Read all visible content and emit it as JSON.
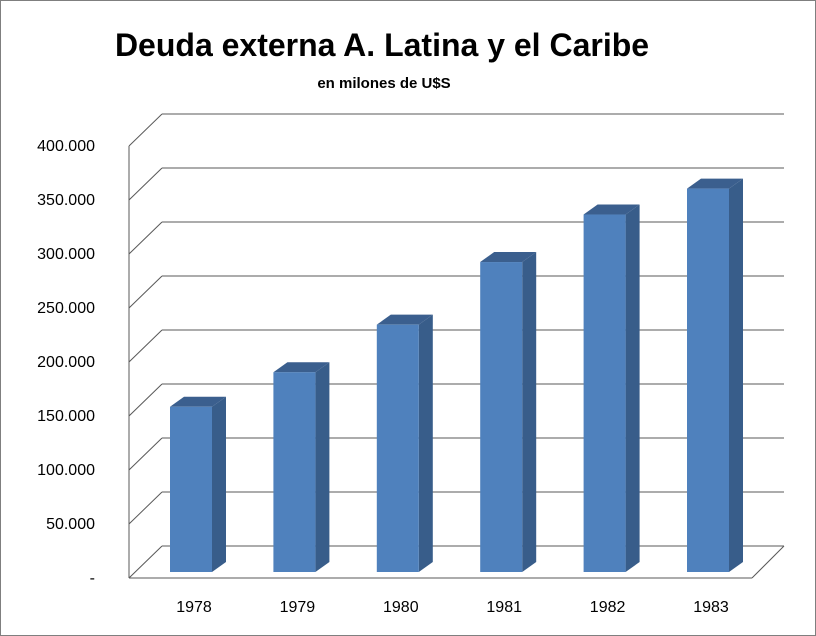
{
  "chart_data": {
    "type": "bar",
    "title": "Deuda externa A. Latina y el Caribe",
    "subtitle": "en milones de U$S",
    "categories": [
      "1978",
      "1979",
      "1980",
      "1981",
      "1982",
      "1983"
    ],
    "values": [
      153000,
      185000,
      229000,
      287000,
      331000,
      355000
    ],
    "ylim": [
      0,
      400000
    ],
    "yticks": [
      0,
      50000,
      100000,
      150000,
      200000,
      250000,
      300000,
      350000,
      400000
    ],
    "ytick_labels": [
      "-",
      "50.000",
      "100.000",
      "150.000",
      "200.000",
      "250.000",
      "300.000",
      "350.000",
      "400.000"
    ],
    "grid": true,
    "style": "3d-column",
    "colors": {
      "bar_front": "#4f81bd",
      "bar_side": "#385d8a",
      "bar_top": "#3b5f8e",
      "grid": "#595959"
    }
  }
}
